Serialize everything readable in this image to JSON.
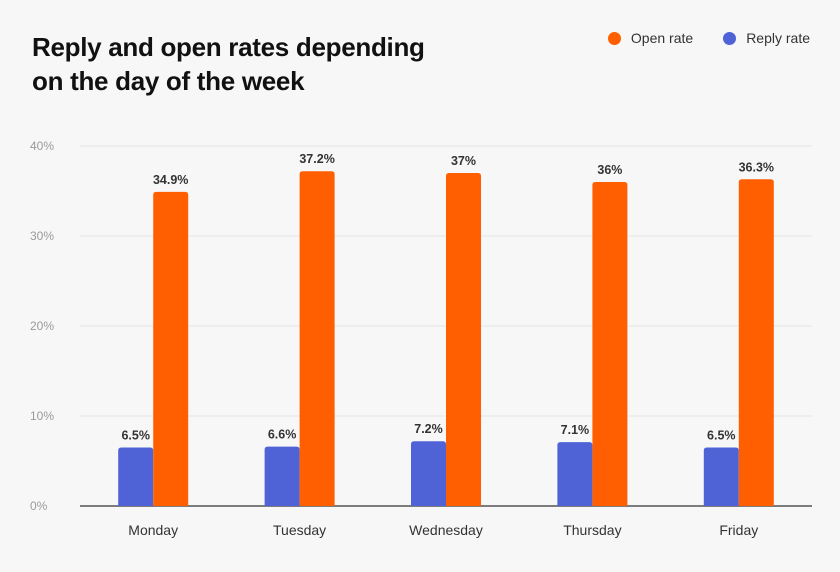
{
  "header": {
    "title_line1": "Reply and open rates depending",
    "title_line2": "on the day of the week"
  },
  "chart_data": {
    "type": "bar",
    "title": "Reply and open rates depending on the day of the week",
    "xlabel": "",
    "ylabel": "",
    "categories": [
      "Monday",
      "Tuesday",
      "Wednesday",
      "Thursday",
      "Friday"
    ],
    "series": [
      {
        "name": "Reply rate",
        "color": "#4f63d7",
        "values": [
          6.5,
          6.6,
          7.2,
          7.1,
          6.5
        ],
        "labels": [
          "6.5%",
          "6.6%",
          "7.2%",
          "7.1%",
          "6.5%"
        ]
      },
      {
        "name": "Open rate",
        "color": "#ff5f00",
        "values": [
          34.9,
          37.2,
          37,
          36,
          36.3
        ],
        "labels": [
          "34.9%",
          "37.2%",
          "37%",
          "36%",
          "36.3%"
        ]
      }
    ],
    "legend_order": [
      "Open rate",
      "Reply rate"
    ],
    "legend_position": "top-right",
    "ylim": [
      0,
      40
    ],
    "yticks": [
      0,
      10,
      20,
      30,
      40
    ],
    "ytick_labels": [
      "0%",
      "10%",
      "20%",
      "30%",
      "40%"
    ],
    "grid": true
  }
}
